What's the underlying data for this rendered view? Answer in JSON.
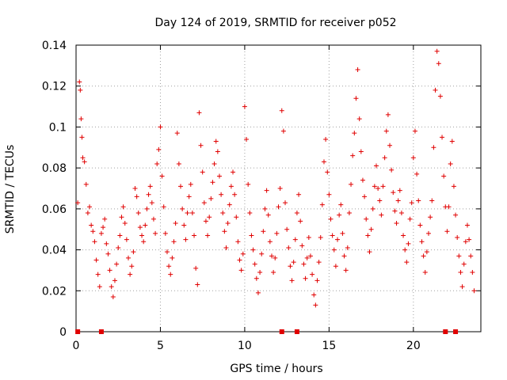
{
  "chart_data": {
    "type": "scatter",
    "title": "Day 124 of 2019, SRMTID for receiver p052",
    "xlabel": "GPS time / hours",
    "ylabel": "SRMTID / TECUs",
    "xlim": [
      0,
      24
    ],
    "ylim": [
      0,
      0.14
    ],
    "x_ticks": [
      0,
      5,
      10,
      15,
      20
    ],
    "x_tick_labels": [
      "0",
      "5",
      "10",
      "15",
      "20"
    ],
    "y_ticks": [
      0,
      0.02,
      0.04,
      0.06,
      0.08,
      0.1,
      0.12,
      0.14
    ],
    "y_tick_labels": [
      "0",
      "0.02",
      "0.04",
      "0.06",
      "0.08",
      "0.1",
      "0.12",
      "0.14"
    ],
    "grid": true,
    "marker": "plus",
    "series_color": "#e00000",
    "series": [
      {
        "name": "SRMTID",
        "points": [
          [
            0.1,
            0.063
          ],
          [
            0.2,
            0.122
          ],
          [
            0.25,
            0.118
          ],
          [
            0.3,
            0.104
          ],
          [
            0.35,
            0.095
          ],
          [
            0.4,
            0.085
          ],
          [
            0.5,
            0.083
          ],
          [
            0.6,
            0.072
          ],
          [
            0.7,
            0.058
          ],
          [
            0.8,
            0.061
          ],
          [
            0.9,
            0.052
          ],
          [
            1.0,
            0.049
          ],
          [
            1.1,
            0.044
          ],
          [
            1.2,
            0.035
          ],
          [
            1.3,
            0.028
          ],
          [
            1.4,
            0.022
          ],
          [
            1.5,
            0.048
          ],
          [
            1.6,
            0.051
          ],
          [
            1.7,
            0.055
          ],
          [
            1.8,
            0.043
          ],
          [
            1.9,
            0.038
          ],
          [
            2.0,
            0.03
          ],
          [
            2.1,
            0.022
          ],
          [
            2.2,
            0.017
          ],
          [
            2.3,
            0.025
          ],
          [
            2.4,
            0.033
          ],
          [
            2.5,
            0.041
          ],
          [
            2.6,
            0.047
          ],
          [
            2.7,
            0.056
          ],
          [
            2.8,
            0.061
          ],
          [
            2.9,
            0.053
          ],
          [
            3.0,
            0.045
          ],
          [
            3.1,
            0.036
          ],
          [
            3.2,
            0.028
          ],
          [
            3.3,
            0.032
          ],
          [
            3.4,
            0.039
          ],
          [
            3.5,
            0.07
          ],
          [
            3.6,
            0.066
          ],
          [
            3.7,
            0.058
          ],
          [
            3.8,
            0.051
          ],
          [
            3.9,
            0.047
          ],
          [
            4.0,
            0.044
          ],
          [
            4.1,
            0.052
          ],
          [
            4.2,
            0.06
          ],
          [
            4.3,
            0.067
          ],
          [
            4.4,
            0.071
          ],
          [
            4.5,
            0.063
          ],
          [
            4.6,
            0.055
          ],
          [
            4.7,
            0.048
          ],
          [
            4.8,
            0.082
          ],
          [
            4.9,
            0.089
          ],
          [
            5.0,
            0.1
          ],
          [
            5.1,
            0.076
          ],
          [
            5.2,
            0.061
          ],
          [
            5.3,
            0.048
          ],
          [
            5.4,
            0.039
          ],
          [
            5.5,
            0.032
          ],
          [
            5.6,
            0.028
          ],
          [
            5.7,
            0.036
          ],
          [
            5.8,
            0.044
          ],
          [
            5.9,
            0.053
          ],
          [
            6.0,
            0.097
          ],
          [
            6.1,
            0.082
          ],
          [
            6.2,
            0.071
          ],
          [
            6.3,
            0.06
          ],
          [
            6.4,
            0.052
          ],
          [
            6.5,
            0.045
          ],
          [
            6.6,
            0.058
          ],
          [
            6.7,
            0.066
          ],
          [
            6.8,
            0.072
          ],
          [
            6.9,
            0.058
          ],
          [
            7.0,
            0.047
          ],
          [
            7.1,
            0.031
          ],
          [
            7.2,
            0.023
          ],
          [
            7.3,
            0.107
          ],
          [
            7.4,
            0.091
          ],
          [
            7.5,
            0.078
          ],
          [
            7.6,
            0.063
          ],
          [
            7.7,
            0.054
          ],
          [
            7.8,
            0.047
          ],
          [
            7.9,
            0.056
          ],
          [
            8.0,
            0.065
          ],
          [
            8.1,
            0.073
          ],
          [
            8.2,
            0.082
          ],
          [
            8.3,
            0.093
          ],
          [
            8.4,
            0.088
          ],
          [
            8.5,
            0.076
          ],
          [
            8.6,
            0.067
          ],
          [
            8.7,
            0.058
          ],
          [
            8.8,
            0.049
          ],
          [
            8.9,
            0.041
          ],
          [
            9.0,
            0.053
          ],
          [
            9.1,
            0.062
          ],
          [
            9.2,
            0.071
          ],
          [
            9.3,
            0.078
          ],
          [
            9.4,
            0.067
          ],
          [
            9.5,
            0.056
          ],
          [
            9.6,
            0.044
          ],
          [
            9.7,
            0.035
          ],
          [
            9.8,
            0.03
          ],
          [
            9.9,
            0.038
          ],
          [
            10.0,
            0.11
          ],
          [
            10.1,
            0.094
          ],
          [
            10.2,
            0.072
          ],
          [
            10.3,
            0.058
          ],
          [
            10.4,
            0.047
          ],
          [
            10.5,
            0.04
          ],
          [
            10.6,
            0.033
          ],
          [
            10.7,
            0.026
          ],
          [
            10.8,
            0.019
          ],
          [
            10.9,
            0.029
          ],
          [
            11.0,
            0.038
          ],
          [
            11.1,
            0.049
          ],
          [
            11.2,
            0.06
          ],
          [
            11.3,
            0.069
          ],
          [
            11.4,
            0.057
          ],
          [
            11.5,
            0.044
          ],
          [
            11.6,
            0.037
          ],
          [
            11.7,
            0.029
          ],
          [
            11.8,
            0.036
          ],
          [
            11.9,
            0.048
          ],
          [
            12.0,
            0.061
          ],
          [
            12.1,
            0.07
          ],
          [
            12.2,
            0.108
          ],
          [
            12.3,
            0.098
          ],
          [
            12.4,
            0.063
          ],
          [
            12.5,
            0.05
          ],
          [
            12.6,
            0.041
          ],
          [
            12.7,
            0.032
          ],
          [
            12.8,
            0.025
          ],
          [
            12.9,
            0.034
          ],
          [
            13.0,
            0.045
          ],
          [
            13.1,
            0.058
          ],
          [
            13.2,
            0.067
          ],
          [
            13.3,
            0.054
          ],
          [
            13.4,
            0.042
          ],
          [
            13.5,
            0.033
          ],
          [
            13.6,
            0.026
          ],
          [
            13.7,
            0.036
          ],
          [
            13.8,
            0.046
          ],
          [
            13.9,
            0.037
          ],
          [
            14.0,
            0.028
          ],
          [
            14.1,
            0.018
          ],
          [
            14.2,
            0.013
          ],
          [
            14.3,
            0.025
          ],
          [
            14.4,
            0.034
          ],
          [
            14.5,
            0.046
          ],
          [
            14.6,
            0.062
          ],
          [
            14.7,
            0.083
          ],
          [
            14.8,
            0.094
          ],
          [
            14.9,
            0.078
          ],
          [
            15.0,
            0.067
          ],
          [
            15.1,
            0.055
          ],
          [
            15.2,
            0.047
          ],
          [
            15.3,
            0.04
          ],
          [
            15.4,
            0.032
          ],
          [
            15.5,
            0.045
          ],
          [
            15.6,
            0.057
          ],
          [
            15.7,
            0.062
          ],
          [
            15.8,
            0.048
          ],
          [
            15.9,
            0.037
          ],
          [
            16.0,
            0.03
          ],
          [
            16.1,
            0.041
          ],
          [
            16.2,
            0.058
          ],
          [
            16.3,
            0.072
          ],
          [
            16.4,
            0.086
          ],
          [
            16.5,
            0.097
          ],
          [
            16.6,
            0.114
          ],
          [
            16.7,
            0.128
          ],
          [
            16.8,
            0.104
          ],
          [
            16.9,
            0.088
          ],
          [
            17.0,
            0.074
          ],
          [
            17.1,
            0.066
          ],
          [
            17.2,
            0.055
          ],
          [
            17.3,
            0.047
          ],
          [
            17.4,
            0.039
          ],
          [
            17.5,
            0.05
          ],
          [
            17.6,
            0.06
          ],
          [
            17.7,
            0.071
          ],
          [
            17.8,
            0.081
          ],
          [
            17.9,
            0.07
          ],
          [
            18.0,
            0.064
          ],
          [
            18.1,
            0.057
          ],
          [
            18.2,
            0.071
          ],
          [
            18.3,
            0.085
          ],
          [
            18.4,
            0.098
          ],
          [
            18.5,
            0.106
          ],
          [
            18.6,
            0.091
          ],
          [
            18.7,
            0.079
          ],
          [
            18.8,
            0.068
          ],
          [
            18.9,
            0.059
          ],
          [
            19.0,
            0.053
          ],
          [
            19.1,
            0.064
          ],
          [
            19.2,
            0.069
          ],
          [
            19.3,
            0.058
          ],
          [
            19.4,
            0.047
          ],
          [
            19.5,
            0.04
          ],
          [
            19.6,
            0.034
          ],
          [
            19.7,
            0.043
          ],
          [
            19.8,
            0.055
          ],
          [
            19.9,
            0.063
          ],
          [
            20.0,
            0.085
          ],
          [
            20.1,
            0.098
          ],
          [
            20.2,
            0.077
          ],
          [
            20.3,
            0.064
          ],
          [
            20.4,
            0.052
          ],
          [
            20.5,
            0.044
          ],
          [
            20.6,
            0.037
          ],
          [
            20.7,
            0.029
          ],
          [
            20.8,
            0.039
          ],
          [
            20.9,
            0.048
          ],
          [
            21.0,
            0.056
          ],
          [
            21.1,
            0.064
          ],
          [
            21.2,
            0.09
          ],
          [
            21.3,
            0.118
          ],
          [
            21.4,
            0.137
          ],
          [
            21.5,
            0.131
          ],
          [
            21.6,
            0.115
          ],
          [
            21.7,
            0.095
          ],
          [
            21.8,
            0.076
          ],
          [
            21.9,
            0.061
          ],
          [
            22.0,
            0.049
          ],
          [
            22.1,
            0.061
          ],
          [
            22.2,
            0.082
          ],
          [
            22.3,
            0.093
          ],
          [
            22.4,
            0.071
          ],
          [
            22.5,
            0.057
          ],
          [
            22.6,
            0.046
          ],
          [
            22.7,
            0.037
          ],
          [
            22.8,
            0.029
          ],
          [
            22.9,
            0.022
          ],
          [
            23.0,
            0.033
          ],
          [
            23.1,
            0.044
          ],
          [
            23.2,
            0.052
          ],
          [
            23.3,
            0.045
          ],
          [
            23.4,
            0.037
          ],
          [
            23.5,
            0.029
          ],
          [
            23.6,
            0.02
          ]
        ]
      }
    ],
    "zero_points": [
      0.1,
      1.5,
      12.2,
      13.1,
      21.9,
      22.5
    ]
  }
}
